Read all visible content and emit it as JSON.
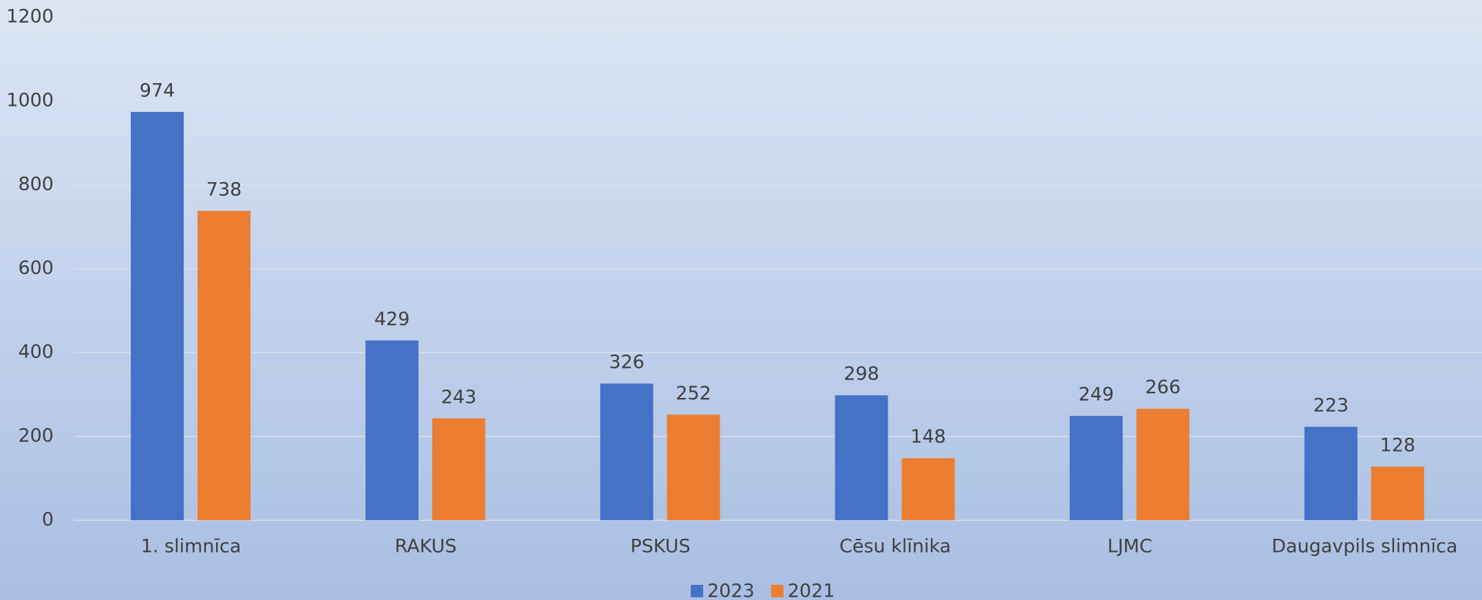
{
  "chart_data": {
    "type": "bar",
    "categories": [
      "1. slimnīca",
      "RAKUS",
      "PSKUS",
      "Cēsu klīnika",
      "LJMC",
      "Daugavpils slimnīca"
    ],
    "series": [
      {
        "name": "2023",
        "color": "#4472c4",
        "values": [
          974,
          429,
          326,
          298,
          249,
          223
        ]
      },
      {
        "name": "2021",
        "color": "#ed7d31",
        "values": [
          738,
          243,
          252,
          148,
          266,
          128
        ]
      }
    ],
    "ylim": [
      0,
      1200
    ],
    "yticks": [
      0,
      200,
      400,
      600,
      800,
      1000,
      1200
    ],
    "grid": true,
    "legend": "bottom"
  }
}
